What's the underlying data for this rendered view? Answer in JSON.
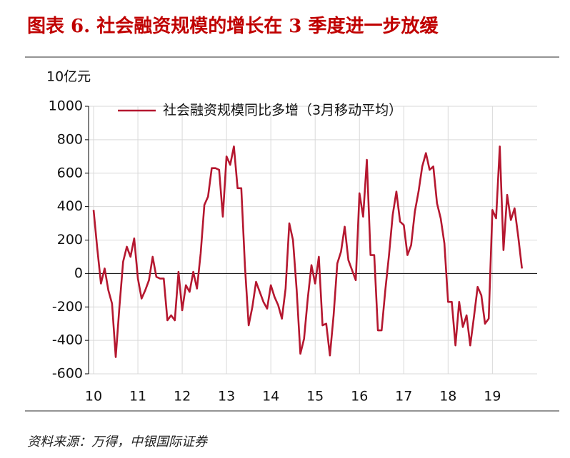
{
  "chart_data": {
    "type": "line",
    "title": "图表 6. 社会融资规模的增长在 3 季度进一步放缓",
    "y_label": "10亿元",
    "source": "资料来源：万得，中银国际证券",
    "categories": [
      "10",
      null,
      null,
      null,
      null,
      null,
      null,
      null,
      null,
      null,
      null,
      null,
      "11",
      null,
      null,
      null,
      null,
      null,
      null,
      null,
      null,
      null,
      null,
      null,
      "12",
      null,
      null,
      null,
      null,
      null,
      null,
      null,
      null,
      null,
      null,
      null,
      "13",
      null,
      null,
      null,
      null,
      null,
      null,
      null,
      null,
      null,
      null,
      null,
      "14",
      null,
      null,
      null,
      null,
      null,
      null,
      null,
      null,
      null,
      null,
      null,
      "15",
      null,
      null,
      null,
      null,
      null,
      null,
      null,
      null,
      null,
      null,
      null,
      "16",
      null,
      null,
      null,
      null,
      null,
      null,
      null,
      null,
      null,
      null,
      null,
      "17",
      null,
      null,
      null,
      null,
      null,
      null,
      null,
      null,
      null,
      null,
      null,
      "18",
      null,
      null,
      null,
      null,
      null,
      null,
      null,
      null,
      null,
      null,
      null,
      "19",
      null,
      null,
      null,
      null,
      null,
      null,
      null,
      null
    ],
    "series": [
      {
        "name": "社会融资规模同比多增（3月移动平均）",
        "color": "#b5172f",
        "values": [
          380,
          150,
          -60,
          30,
          -100,
          -180,
          -500,
          -200,
          70,
          160,
          100,
          210,
          -30,
          -150,
          -100,
          -40,
          100,
          -20,
          -30,
          -30,
          -280,
          -250,
          -280,
          10,
          -220,
          -70,
          -110,
          10,
          -90,
          120,
          410,
          460,
          630,
          630,
          620,
          340,
          700,
          650,
          760,
          510,
          510,
          40,
          -310,
          -200,
          -50,
          -110,
          -170,
          -210,
          -70,
          -140,
          -190,
          -270,
          -90,
          300,
          200,
          -100,
          -480,
          -390,
          -150,
          50,
          -60,
          100,
          -310,
          -300,
          -490,
          -250,
          60,
          130,
          280,
          80,
          20,
          -40,
          480,
          340,
          680,
          110,
          110,
          -340,
          -340,
          -100,
          110,
          350,
          490,
          310,
          290,
          110,
          170,
          370,
          490,
          640,
          720,
          620,
          640,
          420,
          330,
          180,
          -170,
          -170,
          -430,
          -170,
          -320,
          -250,
          -430,
          -260,
          -80,
          -130,
          -300,
          -270,
          380,
          330,
          760,
          140,
          470,
          320,
          390,
          220,
          30
        ]
      }
    ],
    "ylim": [
      -600,
      1000
    ],
    "yticks": [
      -600,
      -400,
      -200,
      0,
      200,
      400,
      600,
      800,
      1000
    ],
    "grid": true,
    "legend": "top"
  }
}
